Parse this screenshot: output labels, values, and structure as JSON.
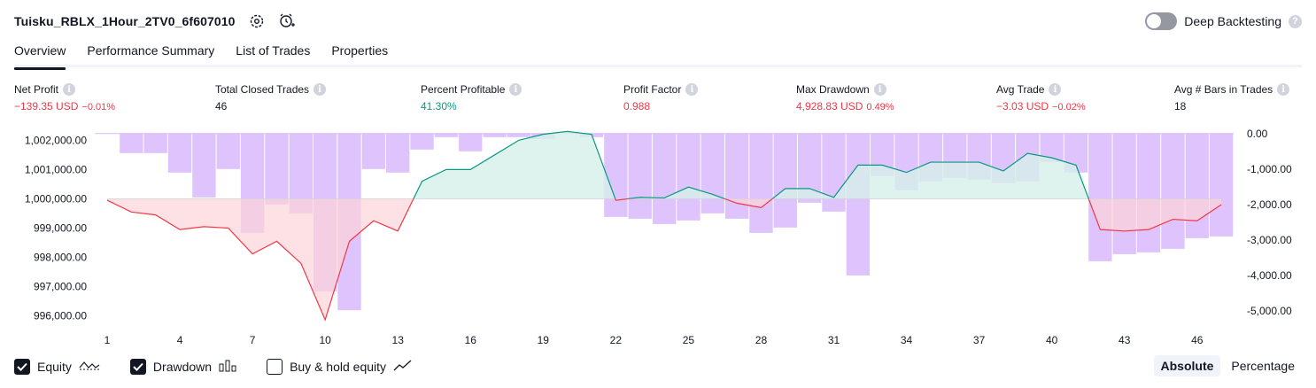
{
  "header": {
    "title": "Tuisku_RBLX_1Hour_2TV0_6f607010",
    "settings_icon": "gear-icon",
    "alert_icon": "alarm-clock-plus-icon",
    "deep_backtesting_label": "Deep Backtesting",
    "deep_backtesting_enabled": false,
    "help_glyph": "?"
  },
  "tabs": [
    {
      "label": "Overview",
      "active": true
    },
    {
      "label": "Performance Summary",
      "active": false
    },
    {
      "label": "List of Trades",
      "active": false
    },
    {
      "label": "Properties",
      "active": false
    }
  ],
  "metrics": [
    {
      "label": "Net Profit",
      "value": "−139.35 USD",
      "sub": "−0.01%",
      "tone": "neg"
    },
    {
      "label": "Total Closed Trades",
      "value": "46",
      "sub": "",
      "tone": "neu"
    },
    {
      "label": "Percent Profitable",
      "value": "41.30%",
      "sub": "",
      "tone": "pos"
    },
    {
      "label": "Profit Factor",
      "value": "0.988",
      "sub": "",
      "tone": "neg"
    },
    {
      "label": "Max Drawdown",
      "value": "4,928.83 USD",
      "sub": "0.49%",
      "tone": "neg"
    },
    {
      "label": "Avg Trade",
      "value": "−3.03 USD",
      "sub": "−0.02%",
      "tone": "neg"
    },
    {
      "label": "Avg # Bars in Trades",
      "value": "18",
      "sub": "",
      "tone": "neu"
    }
  ],
  "info_glyph": "i",
  "chart_data": {
    "type": "line",
    "x": [
      1,
      2,
      3,
      4,
      5,
      6,
      7,
      8,
      9,
      10,
      11,
      12,
      13,
      14,
      15,
      16,
      17,
      18,
      19,
      20,
      21,
      22,
      23,
      24,
      25,
      26,
      27,
      28,
      29,
      30,
      31,
      32,
      33,
      34,
      35,
      36,
      37,
      38,
      39,
      40,
      41,
      42,
      43,
      44,
      45,
      46,
      47
    ],
    "x_tick_labels": [
      "1",
      "4",
      "7",
      "10",
      "13",
      "16",
      "19",
      "22",
      "25",
      "28",
      "31",
      "34",
      "37",
      "40",
      "43",
      "46"
    ],
    "left_axis": {
      "ticks": [
        "1,002,000.00",
        "1,001,000.00",
        "1,000,000.00",
        "999,000.00",
        "998,000.00",
        "997,000.00",
        "996,000.00"
      ],
      "range": [
        995750,
        1002250
      ]
    },
    "right_axis": {
      "ticks": [
        "0.00",
        "-1,000.00",
        "-2,000.00",
        "-3,000.00",
        "-4,000.00",
        "-5,000.00"
      ],
      "range": [
        -5350,
        20
      ]
    },
    "baseline": 1000000,
    "series": [
      {
        "name": "Equity",
        "axis": "left",
        "values": [
          999950,
          999550,
          999450,
          998950,
          999050,
          999000,
          998120,
          998550,
          997800,
          995870,
          998550,
          999250,
          998900,
          1000600,
          1001000,
          1001000,
          1001500,
          1002000,
          1002200,
          1002300,
          1002200,
          999950,
          1000050,
          1000030,
          1000400,
          1000150,
          999850,
          999700,
          1000350,
          1000350,
          1000050,
          1001150,
          1001150,
          1000900,
          1001250,
          1001250,
          1001250,
          1000950,
          1001550,
          1001400,
          1001150,
          998950,
          998900,
          998950,
          999300,
          999250,
          999800
        ]
      },
      {
        "name": "Drawdown",
        "axis": "right",
        "values": [
          0,
          -550,
          -550,
          -1100,
          -1800,
          -1000,
          -2800,
          -2000,
          -2250,
          -4450,
          -4980,
          -1000,
          -1100,
          -450,
          -100,
          -500,
          -100,
          -100,
          -150,
          0,
          -100,
          -2350,
          -2400,
          -2550,
          -2450,
          -2250,
          -2400,
          -2800,
          -2650,
          -1950,
          -2200,
          -4000,
          -1200,
          -1600,
          -1350,
          -1250,
          -1300,
          -1400,
          -1350,
          -800,
          -1100,
          -3600,
          -3400,
          -3350,
          -3250,
          -2950,
          -2900
        ]
      }
    ],
    "colors": {
      "equity_up": "#089981",
      "equity_down": "#f23645",
      "fill_up": "#d6f0e8",
      "fill_down": "#fcd4d9",
      "drawdown_bar": "#d9b8fb",
      "grid": "#f0f3fa"
    },
    "grid": false
  },
  "legend": [
    {
      "label": "Equity",
      "checked": true,
      "icon": "equity-line-icon"
    },
    {
      "label": "Drawdown",
      "checked": true,
      "icon": "drawdown-bars-icon"
    },
    {
      "label": "Buy & hold equity",
      "checked": false,
      "icon": "buy-hold-line-icon"
    }
  ],
  "mode": {
    "options": [
      "Absolute",
      "Percentage"
    ],
    "selected": "Absolute"
  }
}
